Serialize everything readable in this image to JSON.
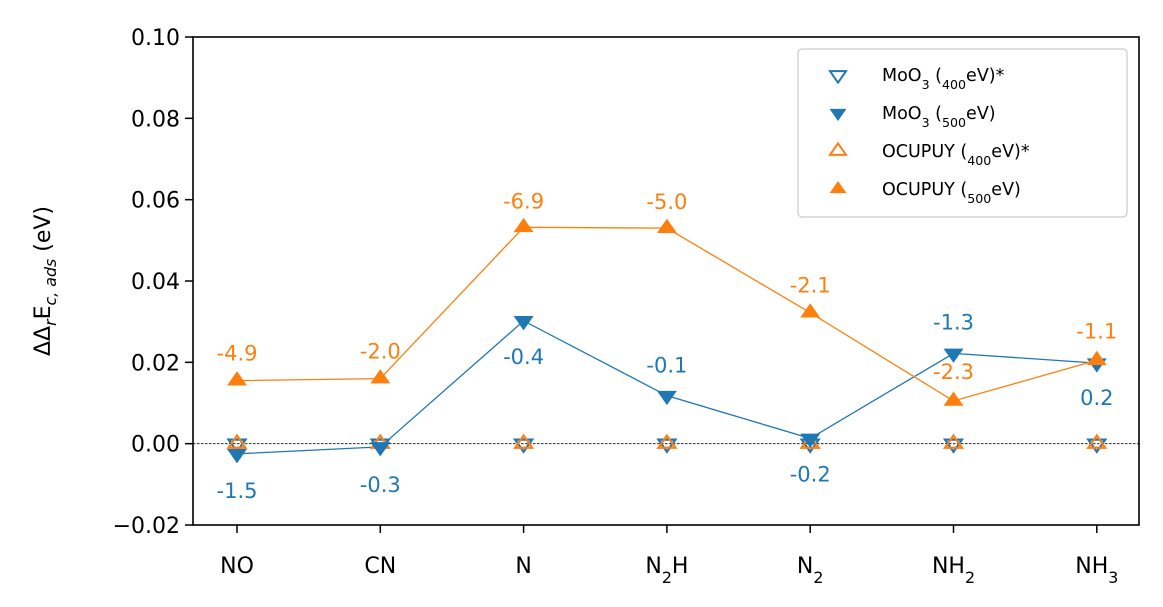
{
  "chart_data": {
    "type": "line",
    "title": "",
    "xlabel": "",
    "ylabel": "ΔΔrEc,ads (eV)",
    "ylim": [
      -0.02,
      0.1
    ],
    "yticks": [
      -0.02,
      0.0,
      0.02,
      0.04,
      0.06,
      0.08,
      0.1
    ],
    "ytick_labels": [
      "−0.02",
      "0.00",
      "0.02",
      "0.04",
      "0.06",
      "0.08",
      "0.10"
    ],
    "categories": [
      "NO",
      "CN",
      "N",
      "N2H",
      "N2",
      "NH2",
      "NH3"
    ],
    "legend_position": "upper-right",
    "zero_line": true,
    "series": [
      {
        "name": "MoO3 (400eV)*",
        "marker": "triangle-down-open",
        "color": "#1f77b4",
        "line": false,
        "values": [
          0.0,
          0.0,
          0.0,
          0.0,
          0.0,
          0.0,
          0.0
        ]
      },
      {
        "name": "MoO3 (500eV)",
        "marker": "triangle-down-filled",
        "color": "#1f77b4",
        "line": true,
        "values": [
          -0.0025,
          -0.0008,
          0.0302,
          0.0118,
          0.0013,
          0.0222,
          0.0198
        ],
        "labels": [
          "-1.5",
          "-0.3",
          "-0.4",
          "-0.1",
          "-0.2",
          "-1.3",
          "0.2"
        ]
      },
      {
        "name": "OCUPUY (400eV)*",
        "marker": "triangle-up-open",
        "color": "#ff7f0e",
        "line": false,
        "values": [
          0.0,
          0.0,
          0.0,
          0.0,
          0.0,
          0.0,
          0.0
        ]
      },
      {
        "name": "OCUPUY (500eV)",
        "marker": "triangle-up-filled",
        "color": "#ff7f0e",
        "line": true,
        "values": [
          0.0155,
          0.016,
          0.0532,
          0.053,
          0.0322,
          0.0105,
          0.0205
        ],
        "labels": [
          "-4.9",
          "-2.0",
          "-6.9",
          "-5.0",
          "-2.1",
          "-2.3",
          "-1.1"
        ]
      }
    ]
  }
}
